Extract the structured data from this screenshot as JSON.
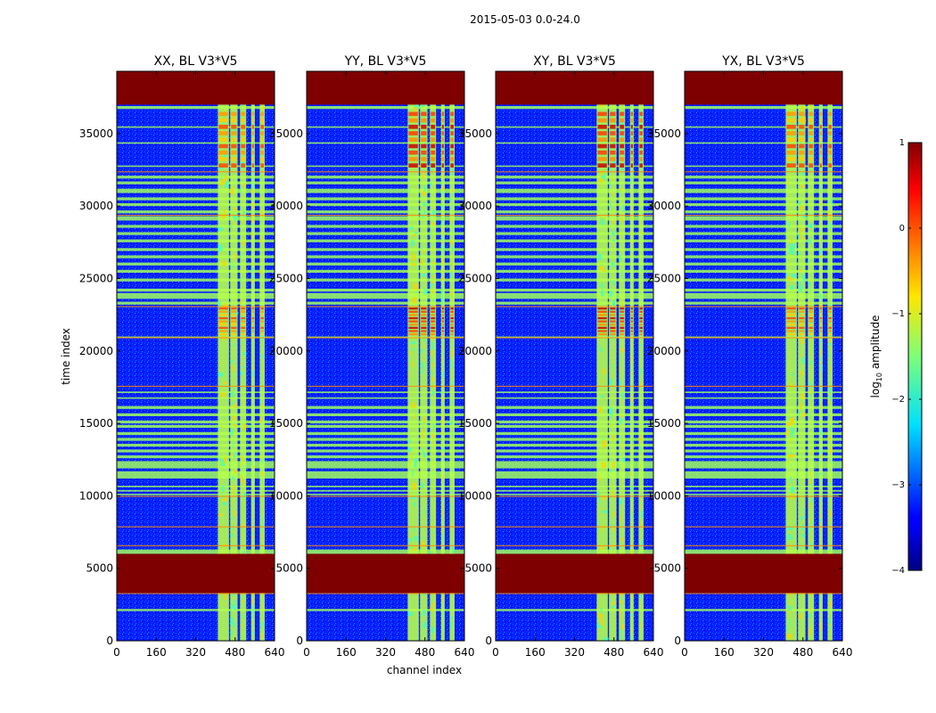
{
  "chart_data": {
    "type": "heatmap",
    "suptitle": "2015-05-03 0.0-24.0",
    "xlabel": "channel index",
    "ylabel": "time index",
    "x_ticks": [
      0,
      160,
      320,
      480,
      640
    ],
    "y_ticks": [
      0,
      5000,
      10000,
      15000,
      20000,
      25000,
      30000,
      35000
    ],
    "xlim": [
      0,
      640
    ],
    "ylim": [
      0,
      39300
    ],
    "panels": [
      {
        "title": "XX, BL V3*V5",
        "pol": "XX"
      },
      {
        "title": "YY, BL V3*V5",
        "pol": "YY"
      },
      {
        "title": "XY, BL V3*V5",
        "pol": "XY"
      },
      {
        "title": "YX, BL V3*V5",
        "pol": "YX"
      }
    ],
    "colorbar": {
      "label_prefix": "log",
      "label_sub": "10",
      "label_suffix": " amplitude",
      "range": [
        -4,
        1
      ],
      "ticks": [
        1,
        0,
        -1,
        -2,
        -3,
        -4
      ],
      "tick_labels": [
        "1",
        "0",
        "−1",
        "−2",
        "−3",
        "−4"
      ],
      "colormap": "jet"
    },
    "flagged_time_ranges": [
      [
        3300,
        6000
      ],
      [
        37000,
        39300
      ]
    ],
    "rfi_channel_range": [
      410,
      600
    ],
    "bright_time_ranges": [
      [
        21000,
        23000
      ],
      [
        32500,
        36500
      ]
    ],
    "colors": {
      "flagged": "#7f0000",
      "background_low": "#0000ff",
      "band": "#a0ff5a",
      "accent_line": "#ff8c00"
    }
  }
}
